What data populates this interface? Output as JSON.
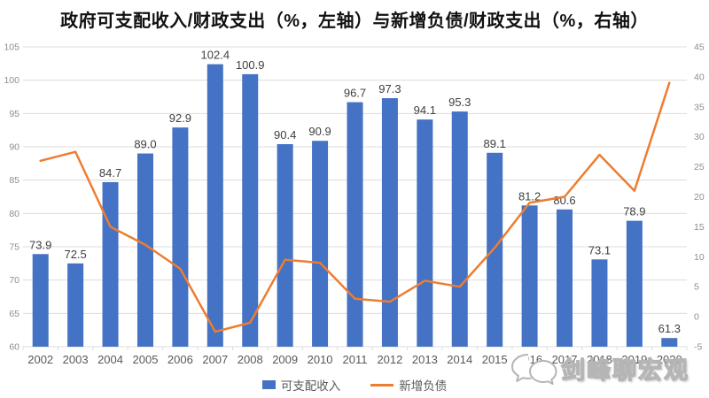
{
  "title": "政府可支配收入/财政支出（%，左轴）与新增负债/财政支出（%，右轴）",
  "legend": {
    "bar_label": "可支配收入",
    "line_label": "新增负债"
  },
  "watermark": {
    "text": "剑峰聊宏观"
  },
  "colors": {
    "bar": "#4472C4",
    "line": "#ED7D31",
    "grid": "#DCDCDC",
    "axis_tick_text": "#8E8E8E",
    "category_text": "#595959",
    "value_label_text": "#3F3F3F",
    "title_text": "#111111"
  },
  "chart_data": {
    "type": "bar",
    "title": "政府可支配收入/财政支出（%，左轴）与新增负债/财政支出（%，右轴）",
    "categories": [
      "2002",
      "2003",
      "2004",
      "2005",
      "2006",
      "2007",
      "2008",
      "2009",
      "2010",
      "2011",
      "2012",
      "2013",
      "2014",
      "2015",
      "2016",
      "2017",
      "2018",
      "2019",
      "2020"
    ],
    "series": [
      {
        "name": "可支配收入",
        "type": "bar",
        "axis": "left",
        "values": [
          73.9,
          72.5,
          84.7,
          89.0,
          92.9,
          102.4,
          100.9,
          90.4,
          90.9,
          96.7,
          97.3,
          94.1,
          95.3,
          89.1,
          81.2,
          80.6,
          73.1,
          78.9,
          61.3
        ]
      },
      {
        "name": "新增负债",
        "type": "line",
        "axis": "right",
        "values": [
          26,
          27.5,
          15,
          12,
          8,
          -2.5,
          -1,
          9.5,
          9,
          3,
          2.5,
          6,
          5,
          11.5,
          19,
          20,
          27,
          21,
          39
        ]
      }
    ],
    "left_axis": {
      "min": 60,
      "max": 105,
      "step": 5,
      "ticks": [
        105,
        100,
        95,
        90,
        85,
        80,
        75,
        70,
        65,
        60
      ]
    },
    "right_axis": {
      "min": -5,
      "max": 45,
      "step": 5,
      "ticks": [
        45,
        40,
        35,
        30,
        25,
        20,
        15,
        10,
        5,
        0,
        -5
      ]
    },
    "grid": true,
    "legend_position": "bottom",
    "value_labels": "above-bars"
  }
}
